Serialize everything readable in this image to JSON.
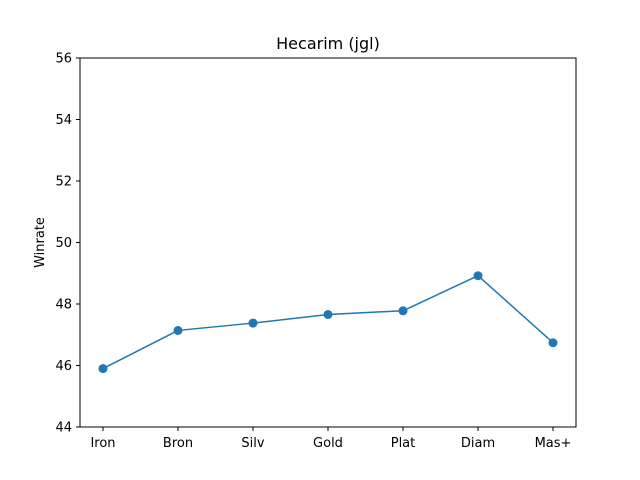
{
  "chart_data": {
    "type": "line",
    "title": "Hecarim (jgl)",
    "xlabel": "",
    "ylabel": "Winrate",
    "categories": [
      "Iron",
      "Bron",
      "Silv",
      "Gold",
      "Plat",
      "Diam",
      "Mas+"
    ],
    "series": [
      {
        "values": [
          45.9,
          47.14,
          47.38,
          47.66,
          47.78,
          48.92,
          46.74
        ],
        "color": "#1f77b4",
        "marker": "circle"
      }
    ],
    "ylim": [
      44,
      56
    ],
    "yticks": [
      44,
      46,
      48,
      50,
      52,
      54,
      56
    ],
    "grid": false,
    "legend": "none"
  }
}
